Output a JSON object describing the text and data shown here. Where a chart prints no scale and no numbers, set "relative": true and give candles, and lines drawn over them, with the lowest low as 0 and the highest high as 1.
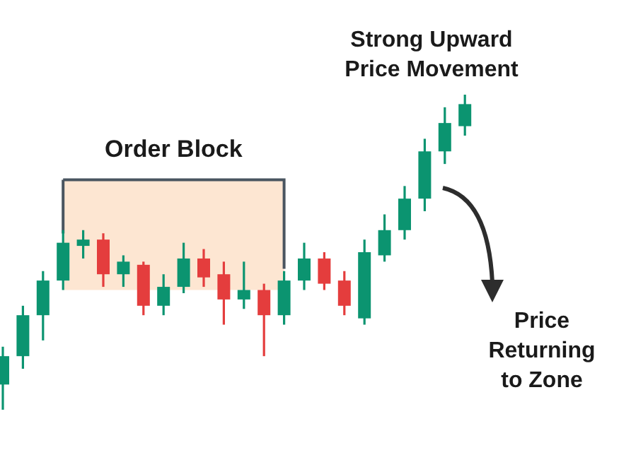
{
  "chart_data": {
    "type": "candlestick",
    "relative": true,
    "categories": [
      null,
      null,
      null,
      null,
      null,
      null,
      null,
      null,
      null,
      null,
      null,
      null,
      null,
      null,
      null,
      null,
      null,
      null,
      null,
      null,
      null,
      null,
      null,
      null
    ],
    "ohlc": [
      [
        0.08,
        0.2,
        0,
        0.17
      ],
      [
        0.17,
        0.33,
        0.13,
        0.3
      ],
      [
        0.3,
        0.44,
        0.22,
        0.41
      ],
      [
        0.41,
        0.57,
        0.38,
        0.53
      ],
      [
        0.52,
        0.57,
        0.48,
        0.54
      ],
      [
        0.54,
        0.56,
        0.39,
        0.43
      ],
      [
        0.43,
        0.49,
        0.39,
        0.47
      ],
      [
        0.46,
        0.47,
        0.3,
        0.33
      ],
      [
        0.33,
        0.43,
        0.3,
        0.39
      ],
      [
        0.39,
        0.53,
        0.37,
        0.48
      ],
      [
        0.48,
        0.51,
        0.39,
        0.42
      ],
      [
        0.43,
        0.47,
        0.27,
        0.35
      ],
      [
        0.35,
        0.47,
        0.32,
        0.38
      ],
      [
        0.38,
        0.4,
        0.17,
        0.3
      ],
      [
        0.3,
        0.44,
        0.27,
        0.41
      ],
      [
        0.41,
        0.53,
        0.38,
        0.48
      ],
      [
        0.48,
        0.5,
        0.38,
        0.4
      ],
      [
        0.41,
        0.44,
        0.3,
        0.33
      ],
      [
        0.29,
        0.54,
        0.27,
        0.5
      ],
      [
        0.49,
        0.62,
        0.47,
        0.57
      ],
      [
        0.57,
        0.71,
        0.54,
        0.67
      ],
      [
        0.67,
        0.86,
        0.63,
        0.82
      ],
      [
        0.82,
        0.96,
        0.78,
        0.91
      ],
      [
        0.9,
        1,
        0.87,
        0.97
      ]
    ],
    "colors": [
      "#0b9470",
      "#0b9470",
      "#0b9470",
      "#0b9470",
      "#0b9470",
      "#e43d3d",
      "#0b9470",
      "#e43d3d",
      "#0b9470",
      "#0b9470",
      "#e43d3d",
      "#e43d3d",
      "#0b9470",
      "#e43d3d",
      "#0b9470",
      "#0b9470",
      "#e43d3d",
      "#e43d3d",
      "#0b9470",
      "#0b9470",
      "#0b9470",
      "#0b9470",
      "#0b9470",
      "#0b9470"
    ],
    "bands": [
      {
        "axis": "y",
        "from": 0.38,
        "to": 0.73,
        "label": "Order Block",
        "color": "#fde6d2"
      }
    ],
    "annotations": [
      "Strong Upward Price Movement",
      "Price Returning to Zone"
    ]
  }
}
